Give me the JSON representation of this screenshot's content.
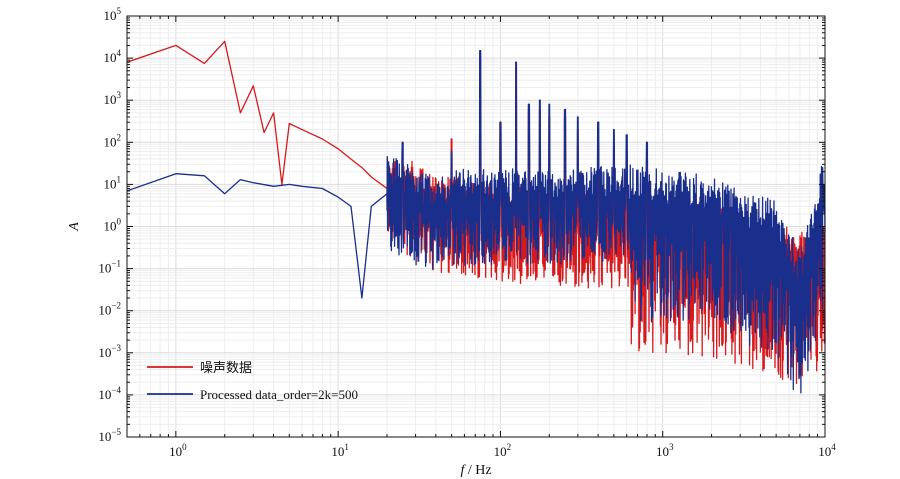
{
  "chart_data": {
    "type": "line",
    "title": "",
    "xlabel": {
      "italic": "f",
      "rest": " / Hz"
    },
    "ylabel": "A",
    "xscale": "log",
    "yscale": "log",
    "xlim": [
      0.5,
      10000
    ],
    "ylim": [
      1e-05,
      100000.0
    ],
    "grid": true,
    "legend_position": "bottom-left",
    "x_ticks": [
      {
        "value": 1,
        "base": "10",
        "exp": "0"
      },
      {
        "value": 10,
        "base": "10",
        "exp": "1"
      },
      {
        "value": 100,
        "base": "10",
        "exp": "2"
      },
      {
        "value": 1000,
        "base": "10",
        "exp": "3"
      },
      {
        "value": 10000,
        "base": "10",
        "exp": "4"
      }
    ],
    "y_ticks": [
      {
        "value": 1e-05,
        "base": "10",
        "exp": "−5"
      },
      {
        "value": 0.0001,
        "base": "10",
        "exp": "−4"
      },
      {
        "value": 0.001,
        "base": "10",
        "exp": "−3"
      },
      {
        "value": 0.01,
        "base": "10",
        "exp": "−2"
      },
      {
        "value": 0.1,
        "base": "10",
        "exp": "−1"
      },
      {
        "value": 1,
        "base": "10",
        "exp": "0"
      },
      {
        "value": 10,
        "base": "10",
        "exp": "1"
      },
      {
        "value": 100,
        "base": "10",
        "exp": "2"
      },
      {
        "value": 1000,
        "base": "10",
        "exp": "3"
      },
      {
        "value": 10000,
        "base": "10",
        "exp": "4"
      },
      {
        "value": 100000,
        "base": "10",
        "exp": "5"
      }
    ],
    "series": [
      {
        "name": "噪声数据",
        "color": "#d7191c",
        "points": [
          [
            0.5,
            8000
          ],
          [
            1,
            20000
          ],
          [
            1.5,
            7500
          ],
          [
            2,
            25000
          ],
          [
            2.5,
            500
          ],
          [
            3,
            2200
          ],
          [
            3.5,
            170
          ],
          [
            4,
            500
          ],
          [
            4.5,
            10
          ],
          [
            5,
            280
          ],
          [
            6,
            200
          ],
          [
            8,
            120
          ],
          [
            10,
            70
          ],
          [
            12,
            40
          ],
          [
            14,
            25
          ],
          [
            16,
            15
          ],
          [
            20,
            8
          ],
          [
            25,
            6
          ],
          [
            30,
            4
          ],
          [
            40,
            2
          ],
          [
            50,
            2
          ],
          [
            70,
            1.5
          ],
          [
            100,
            1.2
          ],
          [
            150,
            1
          ],
          [
            200,
            1
          ],
          [
            300,
            0.8
          ],
          [
            500,
            0.8
          ],
          [
            1000,
            0.6
          ],
          [
            2000,
            0.5
          ],
          [
            4000,
            0.2
          ],
          [
            7000,
            0.1
          ],
          [
            10000,
            0.2
          ]
        ],
        "peaks": [
          [
            25,
            30
          ],
          [
            50,
            120
          ],
          [
            75,
            1000
          ],
          [
            100,
            300
          ],
          [
            125,
            8000
          ],
          [
            150,
            600
          ],
          [
            175,
            600
          ],
          [
            200,
            400
          ],
          [
            250,
            400
          ],
          [
            300,
            200
          ],
          [
            400,
            100
          ],
          [
            500,
            80
          ],
          [
            600,
            60
          ],
          [
            800,
            40
          ]
        ],
        "noise_floor": 0.0001
      },
      {
        "name": "Processed data_order=2k=500",
        "color": "#1a2e8c",
        "points": [
          [
            0.5,
            7
          ],
          [
            1,
            18
          ],
          [
            1.5,
            16
          ],
          [
            2,
            6
          ],
          [
            2.5,
            13
          ],
          [
            3,
            11
          ],
          [
            4,
            9
          ],
          [
            5,
            10
          ],
          [
            6,
            9
          ],
          [
            8,
            8
          ],
          [
            10,
            5
          ],
          [
            12,
            3
          ],
          [
            14,
            0.02
          ],
          [
            16,
            3
          ],
          [
            20,
            6
          ],
          [
            25,
            5
          ],
          [
            30,
            3
          ],
          [
            40,
            2
          ],
          [
            50,
            3
          ],
          [
            70,
            3
          ],
          [
            100,
            3
          ],
          [
            150,
            3
          ],
          [
            200,
            3
          ],
          [
            300,
            3
          ],
          [
            500,
            4
          ],
          [
            1000,
            3
          ],
          [
            2000,
            2
          ],
          [
            3000,
            1
          ],
          [
            5000,
            0.5
          ],
          [
            7000,
            0.03
          ],
          [
            10000,
            8
          ]
        ],
        "peaks": [
          [
            25,
            100
          ],
          [
            50,
            60
          ],
          [
            75,
            15000
          ],
          [
            100,
            300
          ],
          [
            125,
            8000
          ],
          [
            150,
            800
          ],
          [
            175,
            1000
          ],
          [
            200,
            800
          ],
          [
            250,
            600
          ],
          [
            300,
            400
          ],
          [
            400,
            300
          ],
          [
            500,
            200
          ],
          [
            600,
            150
          ],
          [
            800,
            100
          ]
        ],
        "noise_floor": 0.0001
      }
    ]
  }
}
